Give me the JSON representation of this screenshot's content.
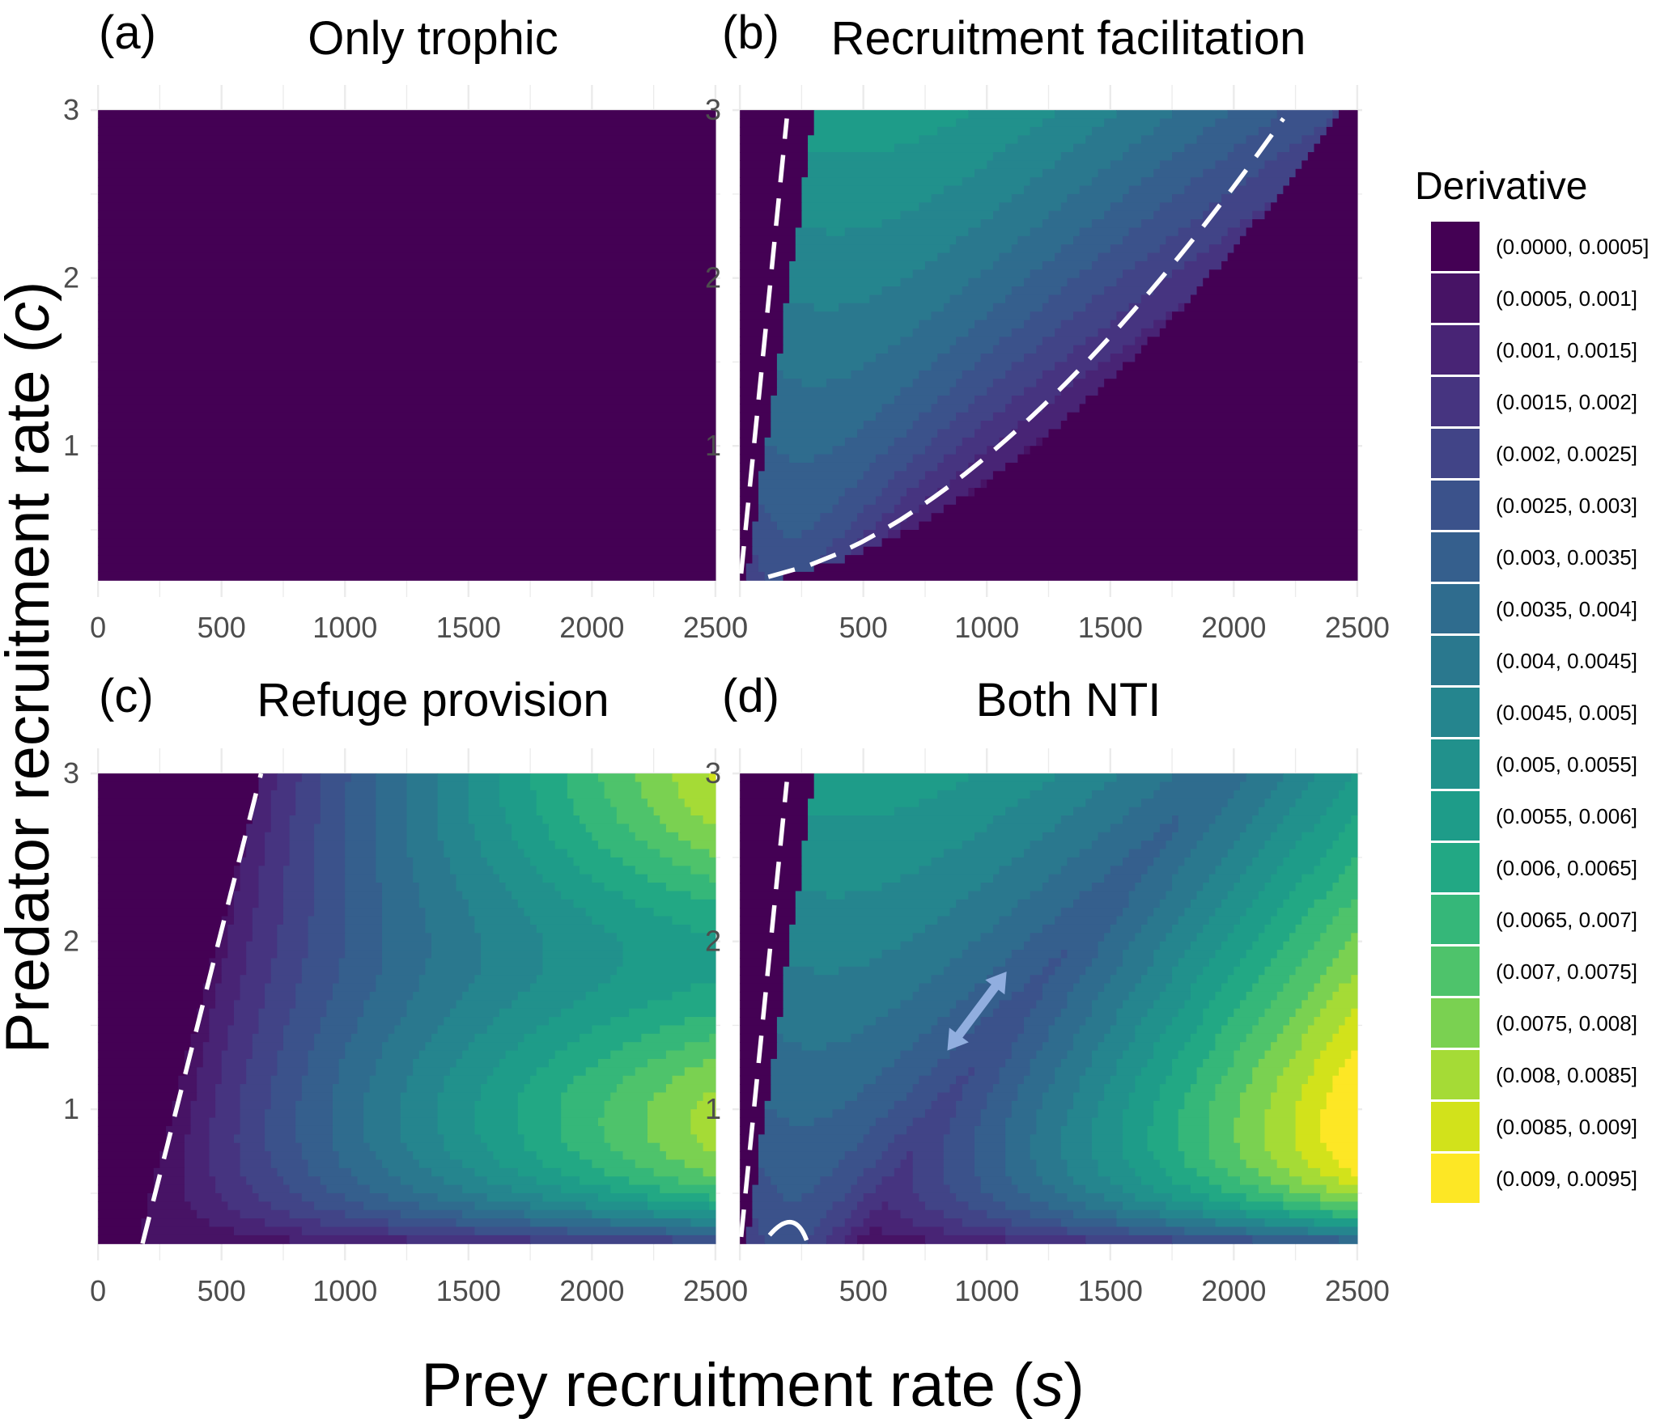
{
  "chart_data": {
    "type": "heatmap",
    "figure_title": "",
    "xlabel_main": "Prey recruitment rate (",
    "xlabel_var": "s",
    "xlabel_close": ")",
    "ylabel_main": "Predator recruitment rate (",
    "ylabel_var": "c",
    "ylabel_close": ")",
    "xlim": [
      0,
      2500
    ],
    "ylim": [
      0.2,
      3
    ],
    "x_ticks": [
      "0",
      "500",
      "1000",
      "1500",
      "2000",
      "2500"
    ],
    "y_ticks": [
      "1",
      "2",
      "3"
    ],
    "grid": true,
    "legend_title": "Derivative",
    "legend_position": "right",
    "legend": [
      {
        "label": "(0.0000, 0.0005]",
        "color": "#440154"
      },
      {
        "label": "(0.0005, 0.001]",
        "color": "#471365"
      },
      {
        "label": "(0.001, 0.0015]",
        "color": "#482475"
      },
      {
        "label": "(0.0015, 0.002]",
        "color": "#463480"
      },
      {
        "label": "(0.002, 0.0025]",
        "color": "#414487"
      },
      {
        "label": "(0.0025, 0.003]",
        "color": "#3b528b"
      },
      {
        "label": "(0.003, 0.0035]",
        "color": "#355f8d"
      },
      {
        "label": "(0.0035, 0.004]",
        "color": "#2f6c8e"
      },
      {
        "label": "(0.004, 0.0045]",
        "color": "#2a788e"
      },
      {
        "label": "(0.0045, 0.005]",
        "color": "#25858e"
      },
      {
        "label": "(0.005, 0.0055]",
        "color": "#21918c"
      },
      {
        "label": "(0.0055, 0.006]",
        "color": "#1e9c89"
      },
      {
        "label": "(0.006, 0.0065]",
        "color": "#22a884"
      },
      {
        "label": "(0.0065, 0.007]",
        "color": "#35b779"
      },
      {
        "label": "(0.007, 0.0075]",
        "color": "#4ec36b"
      },
      {
        "label": "(0.0075, 0.008]",
        "color": "#7ad151"
      },
      {
        "label": "(0.008, 0.0085]",
        "color": "#a5db36"
      },
      {
        "label": "(0.0085, 0.009]",
        "color": "#d2e21b"
      },
      {
        "label": "(0.009, 0.0095]",
        "color": "#fde725"
      }
    ],
    "panels": [
      {
        "tag": "(a)",
        "title": "Only trophic",
        "model": "trophic",
        "dashed_boundary": false,
        "arrow": false
      },
      {
        "tag": "(b)",
        "title": "Recruitment facilitation",
        "model": "facilitation",
        "dashed_boundary": true,
        "arrow": false
      },
      {
        "tag": "(c)",
        "title": "Refuge provision",
        "model": "refuge",
        "dashed_boundary": true,
        "arrow": false
      },
      {
        "tag": "(d)",
        "title": "Both NTI",
        "model": "both",
        "dashed_boundary": true,
        "arrow": true
      }
    ],
    "arrow": {
      "color": "#91aedf",
      "from": [
        840,
        1.35
      ],
      "to": [
        1080,
        1.82
      ]
    }
  }
}
